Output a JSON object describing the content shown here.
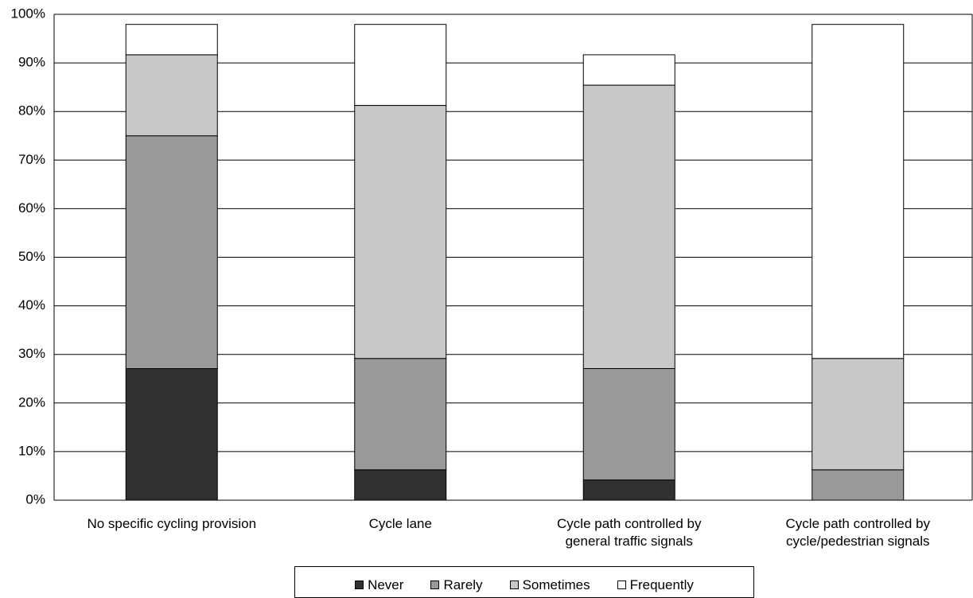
{
  "chart_data": {
    "type": "stacked_bar",
    "categories": [
      "No specific cycling provision",
      "Cycle lane",
      "Cycle path controlled by general traffic signals",
      "Cycle path controlled by cycle/pedestrian signals"
    ],
    "series": [
      {
        "name": "Never",
        "color": "#333033",
        "values": [
          27.08,
          6.25,
          4.17,
          0
        ]
      },
      {
        "name": "Rarely",
        "color": "#999999",
        "values": [
          47.92,
          22.92,
          22.92,
          6.25
        ]
      },
      {
        "name": "Sometimes",
        "color": "#c8c8c8",
        "values": [
          16.67,
          52.08,
          58.33,
          22.92
        ]
      },
      {
        "name": "Frequently",
        "color": "#ffffff",
        "values": [
          6.25,
          16.67,
          6.25,
          68.75
        ]
      }
    ],
    "ylim": [
      0,
      100
    ],
    "yticks": [
      {
        "value": 0,
        "label": "0%"
      },
      {
        "value": 10,
        "label": "10%"
      },
      {
        "value": 20,
        "label": "20%"
      },
      {
        "value": 30,
        "label": "30%"
      },
      {
        "value": 40,
        "label": "40%"
      },
      {
        "value": 50,
        "label": "50%"
      },
      {
        "value": 60,
        "label": "60%"
      },
      {
        "value": 70,
        "label": "70%"
      },
      {
        "value": 80,
        "label": "80%"
      },
      {
        "value": 90,
        "label": "90%"
      },
      {
        "value": 100,
        "label": "100%"
      }
    ],
    "grid": true
  }
}
